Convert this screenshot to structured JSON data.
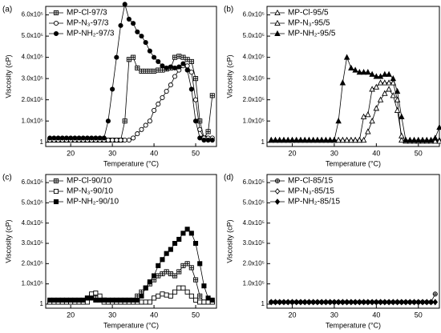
{
  "chart_data": [
    {
      "type": "line",
      "panel_label": "(a)",
      "xlabel": "Temperature (°C)",
      "ylabel": "Viscosity (cP)",
      "x": [
        15,
        16,
        17,
        18,
        19,
        20,
        21,
        22,
        23,
        24,
        25,
        26,
        27,
        28,
        29,
        30,
        31,
        32,
        33,
        34,
        35,
        36,
        37,
        38,
        39,
        40,
        41,
        42,
        43,
        44,
        45,
        46,
        47,
        48,
        49,
        50,
        51,
        52,
        53,
        54
      ],
      "series": [
        {
          "name": "MP-Cl-97/3",
          "color": "#000000",
          "marker": "square-cross",
          "values": [
            10000,
            10000,
            10000,
            10000,
            10000,
            10000,
            10000,
            10000,
            10000,
            10000,
            10000,
            10000,
            10000,
            10000,
            10000,
            10000,
            10000,
            10000,
            100000,
            390000,
            400000,
            350000,
            335000,
            335000,
            335000,
            335000,
            340000,
            340000,
            345000,
            350000,
            400000,
            405000,
            400000,
            390000,
            380000,
            300000,
            100000,
            20000,
            50000,
            220000
          ]
        },
        {
          "name": "MP-N₃-97/3",
          "color": "#000000",
          "marker": "circle-open",
          "values": [
            10000,
            10000,
            10000,
            10000,
            10000,
            10000,
            10000,
            10000,
            10000,
            10000,
            10000,
            10000,
            10000,
            10000,
            10000,
            10000,
            10000,
            10000,
            10000,
            10000,
            20000,
            40000,
            60000,
            80000,
            100000,
            150000,
            180000,
            210000,
            240000,
            270000,
            310000,
            340000,
            360000,
            360000,
            330000,
            200000,
            60000,
            20000,
            20000,
            20000
          ]
        },
        {
          "name": "MP-NH₂-97/3",
          "color": "#000000",
          "marker": "circle",
          "values": [
            20000,
            20000,
            20000,
            20000,
            20000,
            20000,
            20000,
            20000,
            20000,
            20000,
            20000,
            20000,
            20000,
            20000,
            100000,
            250000,
            400000,
            550000,
            650000,
            580000,
            560000,
            520000,
            500000,
            470000,
            430000,
            400000,
            380000,
            360000,
            350000,
            355000,
            350000,
            355000,
            370000,
            340000,
            250000,
            100000,
            20000,
            10000,
            10000,
            10000
          ]
        }
      ],
      "xlim": [
        14,
        55
      ],
      "xticks": [
        20,
        30,
        40,
        50
      ],
      "ylim": [
        -20000,
        640000
      ],
      "yticks": [
        1,
        {
          "value": 100000,
          "label": "1.0x10⁵"
        },
        {
          "value": 200000,
          "label": "2.0x10⁵"
        },
        {
          "value": 300000,
          "label": "3.0x10⁵"
        },
        {
          "value": 400000,
          "label": "4.0x10⁵"
        },
        {
          "value": 500000,
          "label": "5.0x10⁵"
        },
        {
          "value": 600000,
          "label": "6.0x10⁵"
        }
      ],
      "legend": "upper left"
    },
    {
      "type": "line",
      "panel_label": "(b)",
      "xlabel": "Temperature (°C)",
      "ylabel": "Viscosity (cP)",
      "x": [
        15,
        16,
        17,
        18,
        19,
        20,
        21,
        22,
        23,
        24,
        25,
        26,
        27,
        28,
        29,
        30,
        31,
        32,
        33,
        34,
        35,
        36,
        37,
        38,
        39,
        40,
        41,
        42,
        43,
        44,
        45,
        46,
        47,
        48,
        49,
        50,
        51,
        52,
        53,
        54,
        55
      ],
      "series": [
        {
          "name": "MP-Cl-95/5",
          "color": "#000000",
          "marker": "triangle-open",
          "values": [
            10000,
            10000,
            10000,
            10000,
            10000,
            10000,
            10000,
            10000,
            10000,
            10000,
            10000,
            10000,
            10000,
            10000,
            10000,
            10000,
            10000,
            10000,
            10000,
            10000,
            10000,
            10000,
            120000,
            130000,
            250000,
            260000,
            280000,
            280000,
            280000,
            280000,
            200000,
            10000,
            10000,
            10000,
            10000,
            10000,
            10000,
            10000,
            10000,
            10000,
            10000
          ]
        },
        {
          "name": "MP-N₃-95/5",
          "color": "#000000",
          "marker": "triangle-open",
          "values": [
            10000,
            10000,
            10000,
            10000,
            10000,
            10000,
            10000,
            10000,
            10000,
            10000,
            10000,
            10000,
            10000,
            10000,
            10000,
            10000,
            10000,
            10000,
            10000,
            10000,
            10000,
            10000,
            10000,
            50000,
            100000,
            160000,
            200000,
            230000,
            250000,
            220000,
            150000,
            30000,
            5000,
            5000,
            5000,
            5000,
            5000,
            5000,
            5000,
            5000,
            5000
          ]
        },
        {
          "name": "MP-NH₂-95/5",
          "color": "#000000",
          "marker": "triangle",
          "values": [
            10000,
            10000,
            10000,
            10000,
            10000,
            10000,
            10000,
            10000,
            10000,
            10000,
            10000,
            10000,
            10000,
            10000,
            10000,
            10000,
            100000,
            280000,
            400000,
            350000,
            340000,
            330000,
            330000,
            330000,
            320000,
            310000,
            310000,
            320000,
            320000,
            300000,
            240000,
            120000,
            10000,
            10000,
            10000,
            10000,
            10000,
            10000,
            10000,
            20000,
            70000
          ]
        }
      ],
      "xlim": [
        14,
        55
      ],
      "xticks": [
        20,
        30,
        40,
        50
      ],
      "ylim": [
        -20000,
        640000
      ],
      "yticks": [
        1,
        {
          "value": 100000,
          "label": "1.0x10⁵"
        },
        {
          "value": 200000,
          "label": "2.0x10⁵"
        },
        {
          "value": 300000,
          "label": "3.0x10⁵"
        },
        {
          "value": 400000,
          "label": "4.0x10⁵"
        },
        {
          "value": 500000,
          "label": "5.0x10⁵"
        },
        {
          "value": 600000,
          "label": "6.0x10⁵"
        }
      ],
      "legend": "upper left"
    },
    {
      "type": "line",
      "panel_label": "(c)",
      "xlabel": "Temperature (°C)",
      "ylabel": "Viscosity (cP)",
      "x": [
        15,
        16,
        17,
        18,
        19,
        20,
        21,
        22,
        23,
        24,
        25,
        26,
        27,
        28,
        29,
        30,
        31,
        32,
        33,
        34,
        35,
        36,
        37,
        38,
        39,
        40,
        41,
        42,
        43,
        44,
        45,
        46,
        47,
        48,
        49,
        50,
        51,
        52,
        53,
        54
      ],
      "series": [
        {
          "name": "MP-Cl-90/10",
          "color": "#000000",
          "marker": "square-cross",
          "values": [
            10000,
            10000,
            10000,
            10000,
            10000,
            10000,
            10000,
            10000,
            10000,
            30000,
            40000,
            40000,
            30000,
            20000,
            10000,
            10000,
            10000,
            10000,
            10000,
            10000,
            10000,
            40000,
            60000,
            80000,
            100000,
            120000,
            140000,
            150000,
            160000,
            150000,
            140000,
            160000,
            190000,
            200000,
            180000,
            120000,
            40000,
            10000,
            10000,
            10000
          ]
        },
        {
          "name": "MP-N₃-90/10",
          "color": "#000000",
          "marker": "square-open",
          "values": [
            10000,
            10000,
            10000,
            10000,
            10000,
            10000,
            10000,
            10000,
            10000,
            10000,
            50000,
            55000,
            40000,
            10000,
            10000,
            10000,
            10000,
            10000,
            10000,
            10000,
            10000,
            10000,
            10000,
            10000,
            10000,
            30000,
            40000,
            50000,
            45000,
            40000,
            60000,
            80000,
            80000,
            60000,
            40000,
            20000,
            10000,
            10000,
            10000,
            10000
          ]
        },
        {
          "name": "MP-NH₂-90/10",
          "color": "#000000",
          "marker": "square",
          "values": [
            20000,
            20000,
            20000,
            20000,
            20000,
            20000,
            20000,
            20000,
            20000,
            30000,
            30000,
            20000,
            20000,
            20000,
            20000,
            20000,
            20000,
            20000,
            20000,
            20000,
            20000,
            20000,
            40000,
            80000,
            110000,
            140000,
            190000,
            220000,
            250000,
            270000,
            300000,
            320000,
            350000,
            370000,
            350000,
            300000,
            200000,
            90000,
            30000,
            20000
          ]
        }
      ],
      "xlim": [
        14,
        55
      ],
      "xticks": [
        20,
        30,
        40,
        50
      ],
      "ylim": [
        -20000,
        640000
      ],
      "yticks": [
        1,
        {
          "value": 100000,
          "label": "1.0x10⁵"
        },
        {
          "value": 200000,
          "label": "2.0x10⁵"
        },
        {
          "value": 300000,
          "label": "3.0x10⁵"
        },
        {
          "value": 400000,
          "label": "4.0x10⁵"
        },
        {
          "value": 500000,
          "label": "5.0x10⁵"
        },
        {
          "value": 600000,
          "label": "6.0x10⁵"
        }
      ],
      "legend": "upper left"
    },
    {
      "type": "line",
      "panel_label": "(d)",
      "xlabel": "Temperature (°C)",
      "ylabel": "Viscosity (cP)",
      "x": [
        15,
        16,
        17,
        18,
        19,
        20,
        21,
        22,
        23,
        24,
        25,
        26,
        27,
        28,
        29,
        30,
        31,
        32,
        33,
        34,
        35,
        36,
        37,
        38,
        39,
        40,
        41,
        42,
        43,
        44,
        45,
        46,
        47,
        48,
        49,
        50,
        51,
        52,
        53,
        54
      ],
      "series": [
        {
          "name": "MP-Cl-85/15",
          "color": "#000000",
          "marker": "circle-cross",
          "values": [
            10000,
            10000,
            10000,
            10000,
            10000,
            10000,
            10000,
            10000,
            10000,
            10000,
            10000,
            10000,
            10000,
            10000,
            10000,
            10000,
            10000,
            10000,
            10000,
            10000,
            10000,
            10000,
            10000,
            10000,
            10000,
            10000,
            10000,
            10000,
            10000,
            10000,
            10000,
            10000,
            10000,
            10000,
            10000,
            10000,
            10000,
            10000,
            10000,
            50000
          ]
        },
        {
          "name": "MP-N₃-85/15",
          "color": "#000000",
          "marker": "diamond-open",
          "values": [
            10000,
            10000,
            10000,
            10000,
            10000,
            10000,
            10000,
            10000,
            10000,
            10000,
            10000,
            10000,
            10000,
            10000,
            10000,
            10000,
            10000,
            10000,
            10000,
            10000,
            10000,
            10000,
            10000,
            10000,
            10000,
            10000,
            10000,
            10000,
            10000,
            10000,
            10000,
            10000,
            10000,
            10000,
            10000,
            10000,
            10000,
            10000,
            10000,
            10000
          ]
        },
        {
          "name": "MP-NH₂-85/15",
          "color": "#000000",
          "marker": "diamond",
          "values": [
            10000,
            10000,
            10000,
            10000,
            10000,
            10000,
            10000,
            10000,
            10000,
            10000,
            10000,
            10000,
            10000,
            10000,
            10000,
            10000,
            10000,
            10000,
            10000,
            10000,
            10000,
            10000,
            10000,
            10000,
            10000,
            10000,
            10000,
            10000,
            10000,
            10000,
            10000,
            10000,
            10000,
            10000,
            10000,
            10000,
            10000,
            10000,
            10000,
            10000
          ]
        }
      ],
      "xlim": [
        14,
        55
      ],
      "xticks": [
        20,
        30,
        40,
        50
      ],
      "ylim": [
        -20000,
        640000
      ],
      "yticks": [
        1,
        {
          "value": 100000,
          "label": "1.0x10⁵"
        },
        {
          "value": 200000,
          "label": "2.0x10⁵"
        },
        {
          "value": 300000,
          "label": "3.0x10⁵"
        },
        {
          "value": 400000,
          "label": "4.0x10⁵"
        },
        {
          "value": 500000,
          "label": "5.0x10⁵"
        },
        {
          "value": 600000,
          "label": "6.0x10⁵"
        }
      ],
      "legend": "upper left"
    }
  ]
}
